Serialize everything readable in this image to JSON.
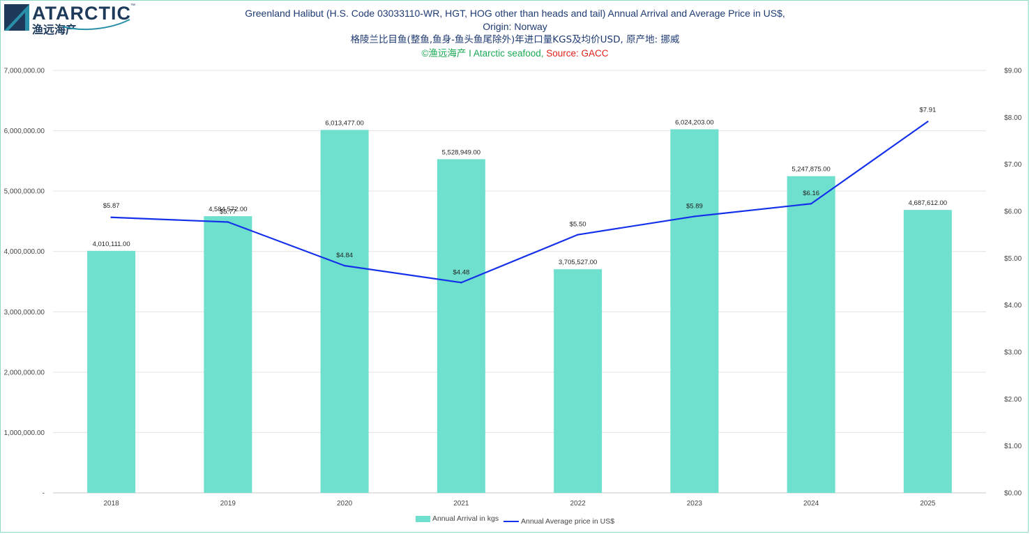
{
  "logo": {
    "wordmark": "ATARCTIC",
    "tm": "™",
    "chinese": "渔远海产"
  },
  "header": {
    "title_line1": "Greenland Halibut (H.S. Code 03033110-WR, HGT, HOG other than heads and tail)  Annual Arrival and Average Price in US$,",
    "title_line2": "Origin: Norway",
    "title_cn": "格陵兰比目鱼(整鱼,鱼身-鱼头鱼尾除外)年进口量KGS及均价USD, 原产地: 挪威",
    "credit": "©渔远海产 I Atarctic seafood, ",
    "source": "Source: GACC"
  },
  "colors": {
    "bar": "#6ee0cd",
    "line": "#1530ea",
    "grid": "#e3e3e3",
    "title": "#1f3b73",
    "credit": "#1aaa55",
    "source": "#e0201b"
  },
  "chart_data": {
    "type": "bar",
    "categories": [
      "2018",
      "2019",
      "2020",
      "2021",
      "2022",
      "2023",
      "2024",
      "2025"
    ],
    "series": [
      {
        "name": "Annual Arrival in kgs",
        "type": "bar",
        "axis": "left",
        "values": [
          4010111,
          4584572,
          6013477,
          5528949,
          3705527,
          6024203,
          5247875,
          4687612
        ],
        "labels": [
          "4,010,111.00",
          "4,584,572.00",
          "6,013,477.00",
          "5,528,949.00",
          "3,705,527.00",
          "6,024,203.00",
          "5,247,875.00",
          "4,687,612.00"
        ]
      },
      {
        "name": "Annual Average price in US$",
        "type": "line",
        "axis": "right",
        "values": [
          5.87,
          5.77,
          4.84,
          4.48,
          5.5,
          5.89,
          6.16,
          7.91
        ],
        "labels": [
          "$5.87",
          "$5.77",
          "$4.84",
          "$4.48",
          "$5.50",
          "$5.89",
          "$6.16",
          "$7.91"
        ]
      }
    ],
    "y_left": {
      "range": [
        0,
        7000000
      ],
      "ticks": [
        0,
        1000000,
        2000000,
        3000000,
        4000000,
        5000000,
        6000000,
        7000000
      ],
      "tick_labels": [
        "-",
        "1,000,000.00",
        "2,000,000.00",
        "3,000,000.00",
        "4,000,000.00",
        "5,000,000.00",
        "6,000,000.00",
        "7,000,000.00"
      ]
    },
    "y_right": {
      "range": [
        0,
        9
      ],
      "ticks": [
        0,
        1,
        2,
        3,
        4,
        5,
        6,
        7,
        8,
        9
      ],
      "tick_labels": [
        "$0.00",
        "$1.00",
        "$2.00",
        "$3.00",
        "$4.00",
        "$5.00",
        "$6.00",
        "$7.00",
        "$8.00",
        "$9.00"
      ]
    },
    "grid": true,
    "legend_position": "bottom"
  },
  "legend": {
    "bar_label": "Annual Arrival in kgs",
    "line_label": "Annual Average price in US$"
  }
}
